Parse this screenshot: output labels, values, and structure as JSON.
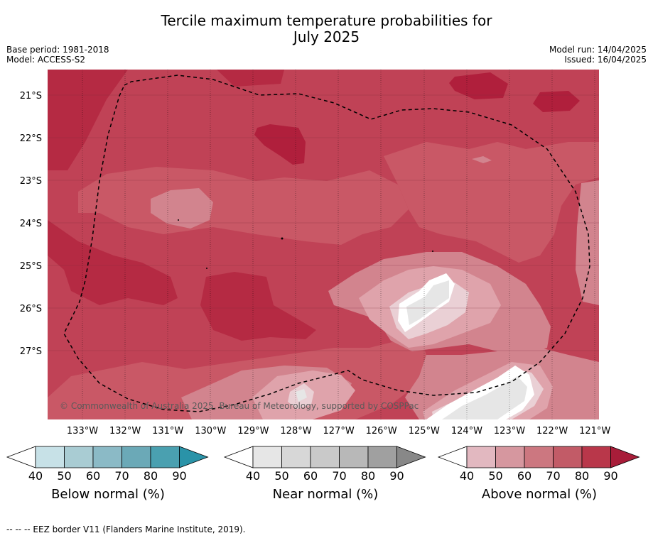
{
  "title_line1": "Tercile maximum temperature probabilities for",
  "title_line2": "July 2025",
  "base_period": "Base period: 1981-2018",
  "model": "Model: ACCESS-S2",
  "model_run": "Model run: 14/04/2025",
  "issued": "Issued: 16/04/2025",
  "copyright": "© Commonwealth of Australia 2025, Bureau of Meteorology, supported by COSPPac",
  "footer_note": "-- -- -- EEZ border V11 (Flanders Marine Institute, 2019).",
  "lat_labels": [
    "21°S",
    "22°S",
    "23°S",
    "24°S",
    "25°S",
    "26°S",
    "27°S"
  ],
  "lon_labels": [
    "133°W",
    "132°W",
    "131°W",
    "130°W",
    "129°W",
    "128°W",
    "127°W",
    "126°W",
    "125°W",
    "124°W",
    "123°W",
    "122°W",
    "121°W"
  ],
  "colorbars": [
    {
      "label": "Below normal (%)",
      "ticks": [
        "40",
        "50",
        "60",
        "70",
        "80",
        "90"
      ],
      "colors": [
        "#ffffff",
        "#c7e1e7",
        "#a9ccd3",
        "#8bbac6",
        "#6ba9b7",
        "#4aa0b0",
        "#2a93a8"
      ]
    },
    {
      "label": "Near normal (%)",
      "ticks": [
        "40",
        "50",
        "60",
        "70",
        "80",
        "90"
      ],
      "colors": [
        "#ffffff",
        "#e6e6e6",
        "#d7d7d7",
        "#c9c9c9",
        "#b8b8b8",
        "#a0a0a0",
        "#888888"
      ]
    },
    {
      "label": "Above normal (%)",
      "ticks": [
        "40",
        "50",
        "60",
        "70",
        "80",
        "90"
      ],
      "colors": [
        "#ffffff",
        "#e2b8c0",
        "#d6979f",
        "#cc7780",
        "#c25b67",
        "#b9374a",
        "#a81d39"
      ]
    }
  ]
}
